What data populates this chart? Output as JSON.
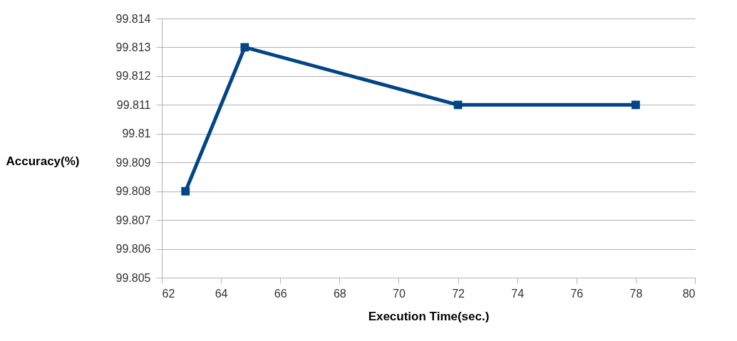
{
  "chart_data": {
    "type": "line",
    "xlabel": "Execution Time(sec.)",
    "ylabel": "Accuracy(%)",
    "x": [
      62.8,
      64.8,
      72,
      78
    ],
    "series": [
      {
        "color": "#004586",
        "values": [
          99.808,
          99.813,
          99.811,
          99.811
        ]
      }
    ],
    "xlim": [
      62,
      80
    ],
    "xticks": [
      62,
      64,
      66,
      68,
      70,
      72,
      74,
      76,
      78,
      80
    ],
    "ylim": [
      99.805,
      99.814
    ],
    "yticks": [
      99.805,
      99.806,
      99.807,
      99.808,
      99.809,
      99.81,
      99.811,
      99.812,
      99.813,
      99.814
    ],
    "grid": "y",
    "marker": "square",
    "line_style": "solid"
  }
}
